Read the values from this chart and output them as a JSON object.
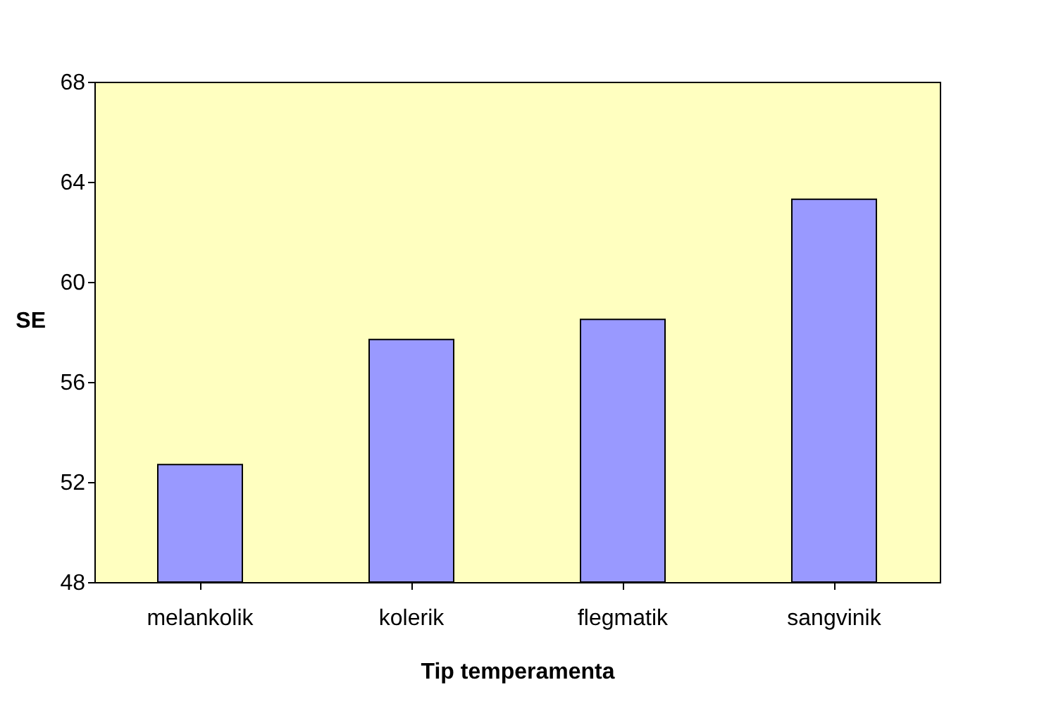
{
  "chart_data": {
    "type": "bar",
    "xlabel": "Tip temperamenta",
    "ylabel": "SE",
    "categories": [
      "melankolik",
      "kolerik",
      "flegmatik",
      "sangvinik"
    ],
    "values": [
      52.7,
      57.7,
      58.5,
      63.3
    ],
    "color": "#9999ff",
    "ylim": [
      48,
      68
    ],
    "yticks": [
      48,
      52,
      56,
      60,
      64,
      68
    ],
    "grid": false
  }
}
